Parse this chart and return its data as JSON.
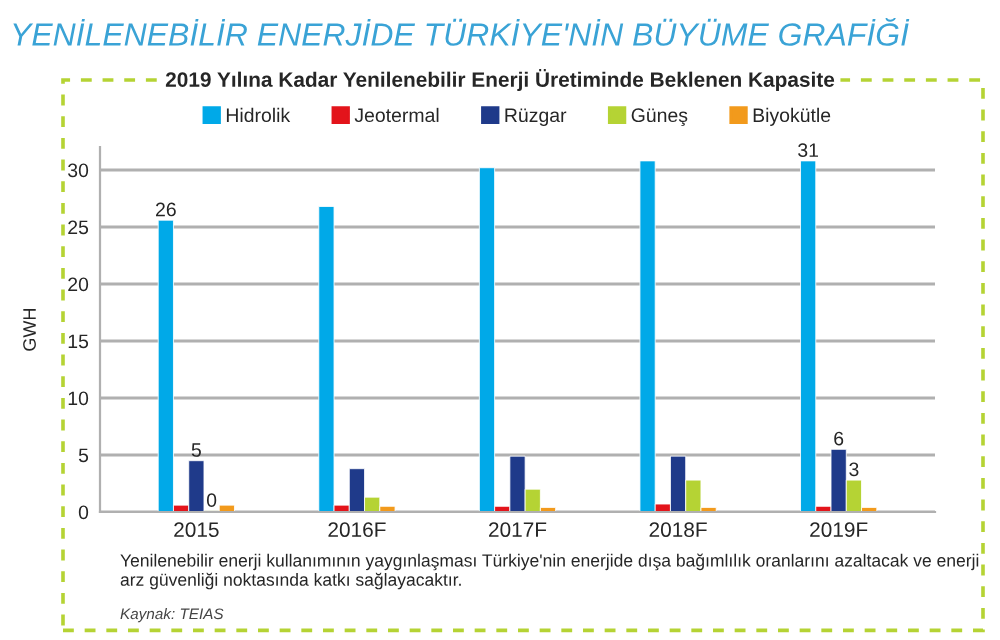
{
  "chart_data": {
    "type": "bar",
    "title": "YENİLENEBİLİR ENERJİDE TÜRKİYE'NİN BÜYÜME GRAFİĞİ",
    "subtitle": "2019 Yılına Kadar Yenilenebilir Enerji Üretiminde Beklenen Kapasite",
    "ylabel": "GWH",
    "categories": [
      "2015",
      "2016F",
      "2017F",
      "2018F",
      "2019F"
    ],
    "series": [
      {
        "name": "Hidrolik",
        "color": "#00a9e8",
        "values": [
          25.6,
          26.8,
          30.2,
          30.8,
          30.8
        ],
        "value_labels": [
          "26",
          null,
          null,
          null,
          "31"
        ]
      },
      {
        "name": "Jeotermal",
        "color": "#e3141b",
        "values": [
          0.6,
          0.6,
          0.5,
          0.7,
          0.5
        ]
      },
      {
        "name": "Rüzgar",
        "color": "#1f3a8a",
        "values": [
          4.5,
          3.8,
          4.9,
          4.9,
          5.5
        ],
        "value_labels": [
          "5",
          null,
          null,
          null,
          "6"
        ]
      },
      {
        "name": "Güneş",
        "color": "#b5d334",
        "values": [
          0.1,
          1.3,
          2.0,
          2.8,
          2.8
        ],
        "value_labels": [
          "0",
          null,
          null,
          null,
          "3"
        ]
      },
      {
        "name": "Biyokütle",
        "color": "#f29a1c",
        "values": [
          0.6,
          0.5,
          0.4,
          0.4,
          0.4
        ]
      }
    ],
    "ylim": [
      0,
      32
    ],
    "yticks": [
      0,
      5,
      10,
      15,
      20,
      25,
      30
    ],
    "grid": "y",
    "legend": "top",
    "annotations": [
      "Yenilenebilir enerji kullanımının yaygınlaşması Türkiye'nin enerjide dışa bağımlılık oranlarını azaltacak ve enerji arz güvenliği noktasında katkı sağlayacaktır.",
      "Kaynak: TEIAS"
    ]
  }
}
